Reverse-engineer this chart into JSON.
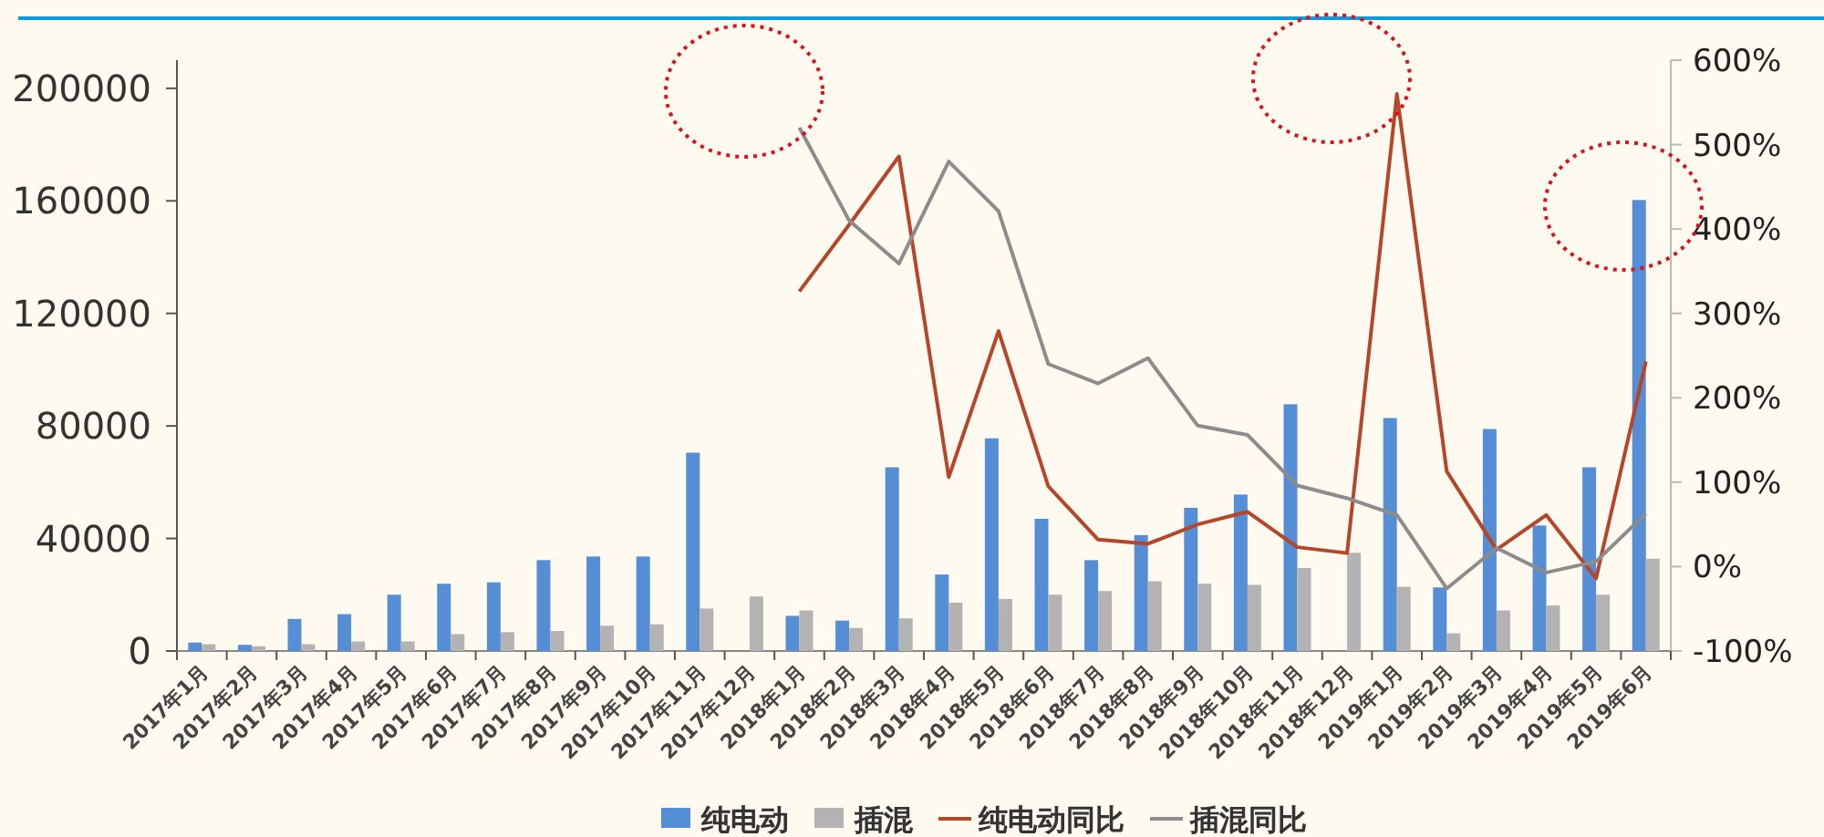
{
  "chart_data": {
    "type": "bar",
    "categories": [
      "2017年1月",
      "2017年2月",
      "2017年3月",
      "2017年4月",
      "2017年5月",
      "2017年6月",
      "2017年7月",
      "2017年8月",
      "2017年9月",
      "2017年10月",
      "2017年11月",
      "2017年12月",
      "2018年1月",
      "2018年2月",
      "2018年3月",
      "2018年4月",
      "2018年5月",
      "2018年6月",
      "2018年7月",
      "2018年8月",
      "2018年9月",
      "2018年10月",
      "2018年11月",
      "2018年12月",
      "2019年1月",
      "2019年2月",
      "2019年3月",
      "2019年4月",
      "2019年5月",
      "2019年6月"
    ],
    "series": [
      {
        "name": "纯电动",
        "color": "#558ed5",
        "values": [
          3000,
          2200,
          11400,
          13100,
          20000,
          23900,
          24400,
          32300,
          33600,
          33600,
          70500,
          null,
          12500,
          10800,
          65300,
          27200,
          75600,
          47000,
          32300,
          41200,
          50900,
          55600,
          87700,
          null,
          82800,
          22600,
          78900,
          44600,
          65300,
          160300
        ]
      },
      {
        "name": "插混",
        "color": "#b3b3b3",
        "values": [
          2400,
          1700,
          2400,
          3400,
          3400,
          6000,
          6700,
          7100,
          9000,
          9500,
          15100,
          19400,
          14400,
          8200,
          11600,
          17200,
          18500,
          20000,
          21300,
          24800,
          23900,
          23500,
          29500,
          34900,
          22800,
          6300,
          14400,
          16200,
          20000,
          32800
        ]
      },
      {
        "name": "纯电动同比",
        "type": "line",
        "axis": "y2",
        "color": "#b5462a",
        "values": [
          null,
          null,
          null,
          null,
          null,
          null,
          null,
          null,
          null,
          null,
          null,
          null,
          326,
          405,
          486,
          106,
          279,
          95,
          32,
          27,
          50,
          65,
          23,
          16,
          560,
          113,
          20,
          61,
          -14,
          243
        ]
      },
      {
        "name": "插混同比",
        "type": "line",
        "axis": "y2",
        "color": "#8c8c8c",
        "values": [
          null,
          null,
          null,
          null,
          null,
          null,
          null,
          null,
          null,
          null,
          null,
          null,
          520,
          410,
          359,
          480,
          421,
          240,
          217,
          247,
          167,
          156,
          96,
          81,
          61,
          -26,
          22,
          -7,
          6,
          63
        ]
      }
    ],
    "ylim": [
      0,
      210000
    ],
    "yticks": [
      0,
      40000,
      80000,
      120000,
      160000,
      200000
    ],
    "y2lim": [
      -100,
      600
    ],
    "y2ticks": [
      {
        "value": -100,
        "label": "-100%"
      },
      {
        "value": 0,
        "label": "0%"
      },
      {
        "value": 100,
        "label": "100%"
      },
      {
        "value": 200,
        "label": "200%"
      },
      {
        "value": 300,
        "label": "300%"
      },
      {
        "value": 400,
        "label": "400%"
      },
      {
        "value": 500,
        "label": "500%"
      },
      {
        "value": 600,
        "label": "600%"
      }
    ],
    "legend": "bottom"
  }
}
